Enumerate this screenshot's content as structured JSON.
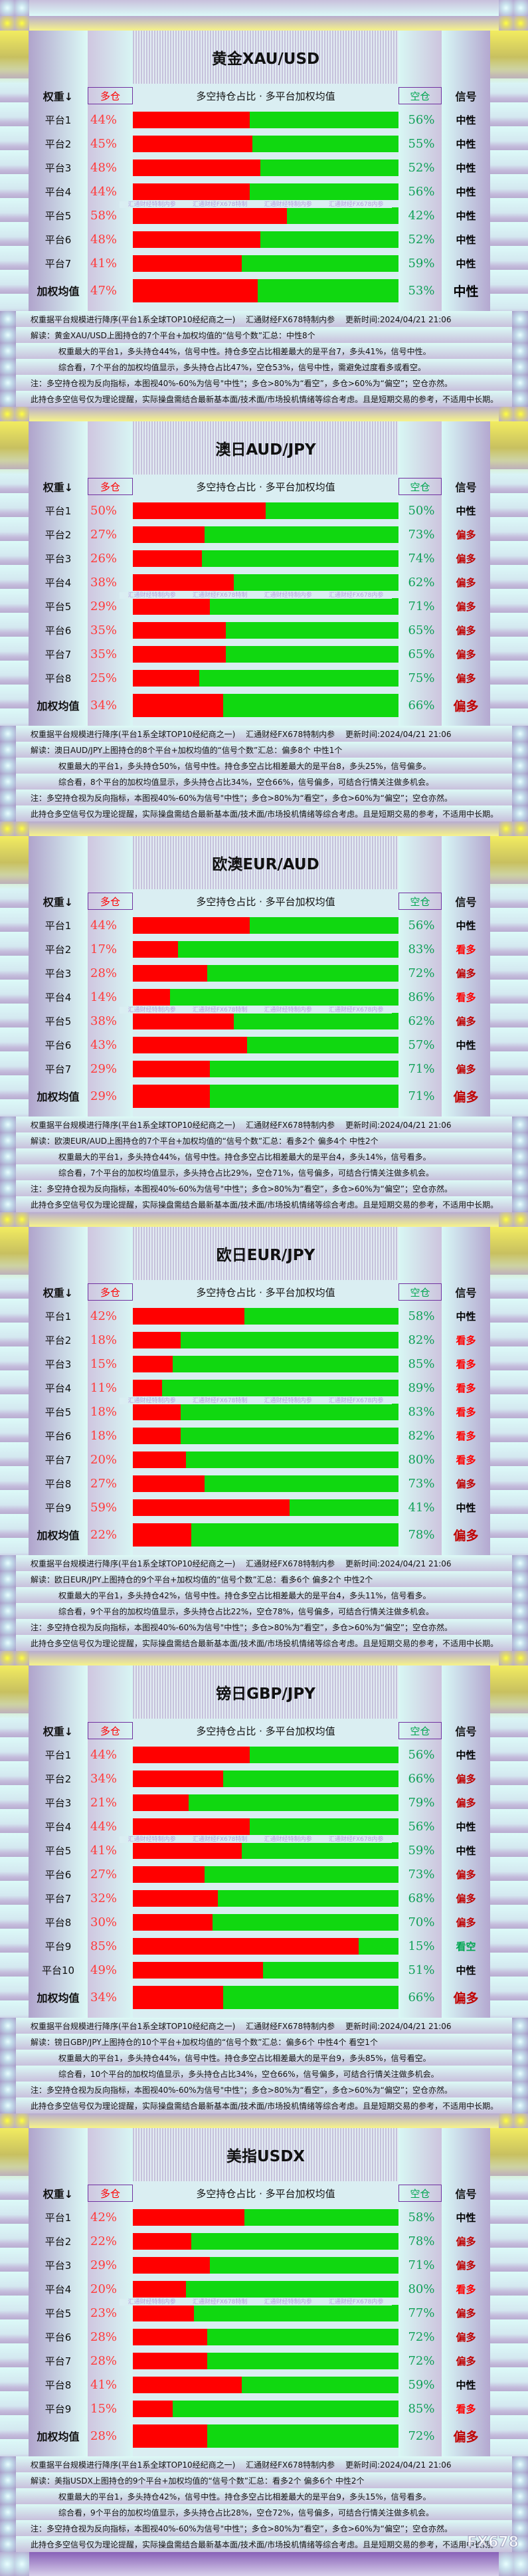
{
  "common": {
    "weight_header": "权重↓",
    "long_header": "多仓",
    "center_header": "多空持仓占比 · 多平台加权均值",
    "short_header": "空仓",
    "signal_header": "信号",
    "weighted_label": "加权均值",
    "footer_line1": "权重据平台规模进行降序(平台1系全球TOP10经纪商之一)　 汇通财经FX678特制内参　 更新时间:2024/04/21 21:06",
    "footer_note": "注：多空持仓视为反向指标，本图视40%-60%为信号\"中性\"；多仓>80%为“看空”，多仓>60%为“偏空”；空仓亦然。",
    "footer_disclaimer": "此持仓多空信号仅为理论提醒，实际操盘需结合最新基本面/技术面/市场投机情绪等综合考虑。且是短期交易的参考，不适用中长期。",
    "watermarks": [
      "汇通财经特制内参",
      "汇通财经FX678特制",
      "汇通财经特制内参",
      "汇通财经FX678内参"
    ],
    "logo": "FX678"
  },
  "signal_colors": {
    "中性": "#000000",
    "偏多": "#c00000",
    "看多": "#ff0000",
    "看空": "#00a651"
  },
  "bar_colors": {
    "long": "#ff0000",
    "short": "#10d810"
  },
  "panels": [
    {
      "title": "黄金XAU/USD",
      "rows": [
        {
          "label": "平台1",
          "long": "44%",
          "short": "56%",
          "signal": "中性"
        },
        {
          "label": "平台2",
          "long": "45%",
          "short": "55%",
          "signal": "中性"
        },
        {
          "label": "平台3",
          "long": "48%",
          "short": "52%",
          "signal": "中性"
        },
        {
          "label": "平台4",
          "long": "44%",
          "short": "56%",
          "signal": "中性"
        },
        {
          "label": "平台5",
          "long": "58%",
          "short": "42%",
          "signal": "中性"
        },
        {
          "label": "平台6",
          "long": "48%",
          "short": "52%",
          "signal": "中性"
        },
        {
          "label": "平台7",
          "long": "41%",
          "short": "59%",
          "signal": "中性"
        }
      ],
      "weighted": {
        "long": "47%",
        "short": "53%",
        "signal": "中性"
      },
      "summary": "解读：黄金XAU/USD上图持仓的7个平台+加权均值的“信号个数”汇总：中性8个",
      "detail": "权重最大的平台1，多头持仓44%，信号中性。持仓多空占比相差最大的是平台7，多头41%，信号中性。",
      "conclusion": "综合看，7个平台的加权均值显示，多头持仓占比47%，空仓53%，信号中性，需避免过度看多或看空。"
    },
    {
      "title": "澳日AUD/JPY",
      "rows": [
        {
          "label": "平台1",
          "long": "50%",
          "short": "50%",
          "signal": "中性"
        },
        {
          "label": "平台2",
          "long": "27%",
          "short": "73%",
          "signal": "偏多"
        },
        {
          "label": "平台3",
          "long": "26%",
          "short": "74%",
          "signal": "偏多"
        },
        {
          "label": "平台4",
          "long": "38%",
          "short": "62%",
          "signal": "偏多"
        },
        {
          "label": "平台5",
          "long": "29%",
          "short": "71%",
          "signal": "偏多"
        },
        {
          "label": "平台6",
          "long": "35%",
          "short": "65%",
          "signal": "偏多"
        },
        {
          "label": "平台7",
          "long": "35%",
          "short": "65%",
          "signal": "偏多"
        },
        {
          "label": "平台8",
          "long": "25%",
          "short": "75%",
          "signal": "偏多"
        }
      ],
      "weighted": {
        "long": "34%",
        "short": "66%",
        "signal": "偏多"
      },
      "summary": "解读：澳日AUD/JPY上图持仓的8个平台+加权均值的“信号个数”汇总：偏多8个 中性1个",
      "detail": "权重最大的平台1，多头持仓50%，信号中性。持仓多空占比相差最大的是平台8，多头25%，信号偏多。",
      "conclusion": "综合看，8个平台的加权均值显示，多头持仓占比34%，空仓66%，信号偏多，可结合行情关注做多机会。"
    },
    {
      "title": "欧澳EUR/AUD",
      "rows": [
        {
          "label": "平台1",
          "long": "44%",
          "short": "56%",
          "signal": "中性"
        },
        {
          "label": "平台2",
          "long": "17%",
          "short": "83%",
          "signal": "看多"
        },
        {
          "label": "平台3",
          "long": "28%",
          "short": "72%",
          "signal": "偏多"
        },
        {
          "label": "平台4",
          "long": "14%",
          "short": "86%",
          "signal": "看多"
        },
        {
          "label": "平台5",
          "long": "38%",
          "short": "62%",
          "signal": "偏多"
        },
        {
          "label": "平台6",
          "long": "43%",
          "short": "57%",
          "signal": "中性"
        },
        {
          "label": "平台7",
          "long": "29%",
          "short": "71%",
          "signal": "偏多"
        }
      ],
      "weighted": {
        "long": "29%",
        "short": "71%",
        "signal": "偏多"
      },
      "summary": "解读：欧澳EUR/AUD上图持仓的7个平台+加权均值的“信号个数”汇总：看多2个 偏多4个 中性2个",
      "detail": "权重最大的平台1，多头持仓44%，信号中性。持仓多空占比相差最大的是平台4，多头14%，信号看多。",
      "conclusion": "综合看，7个平台的加权均值显示，多头持仓占比29%，空仓71%，信号偏多，可结合行情关注做多机会。"
    },
    {
      "title": "欧日EUR/JPY",
      "rows": [
        {
          "label": "平台1",
          "long": "42%",
          "short": "58%",
          "signal": "中性"
        },
        {
          "label": "平台2",
          "long": "18%",
          "short": "82%",
          "signal": "看多"
        },
        {
          "label": "平台3",
          "long": "15%",
          "short": "85%",
          "signal": "看多"
        },
        {
          "label": "平台4",
          "long": "11%",
          "short": "89%",
          "signal": "看多"
        },
        {
          "label": "平台5",
          "long": "18%",
          "short": "83%",
          "signal": "看多"
        },
        {
          "label": "平台6",
          "long": "18%",
          "short": "82%",
          "signal": "看多"
        },
        {
          "label": "平台7",
          "long": "20%",
          "short": "80%",
          "signal": "看多"
        },
        {
          "label": "平台8",
          "long": "27%",
          "short": "73%",
          "signal": "偏多"
        },
        {
          "label": "平台9",
          "long": "59%",
          "short": "41%",
          "signal": "中性"
        }
      ],
      "weighted": {
        "long": "22%",
        "short": "78%",
        "signal": "偏多"
      },
      "summary": "解读：欧日EUR/JPY上图持仓的9个平台+加权均值的“信号个数”汇总：看多6个 偏多2个 中性2个",
      "detail": "权重最大的平台1，多头持仓42%，信号中性。持仓多空占比相差最大的是平台4，多头11%，信号看多。",
      "conclusion": "综合看，9个平台的加权均值显示，多头持仓占比22%，空仓78%，信号偏多，可结合行情关注做多机会。"
    },
    {
      "title": "镑日GBP/JPY",
      "rows": [
        {
          "label": "平台1",
          "long": "44%",
          "short": "56%",
          "signal": "中性"
        },
        {
          "label": "平台2",
          "long": "34%",
          "short": "66%",
          "signal": "偏多"
        },
        {
          "label": "平台3",
          "long": "21%",
          "short": "79%",
          "signal": "偏多"
        },
        {
          "label": "平台4",
          "long": "44%",
          "short": "56%",
          "signal": "中性"
        },
        {
          "label": "平台5",
          "long": "41%",
          "short": "59%",
          "signal": "中性"
        },
        {
          "label": "平台6",
          "long": "27%",
          "short": "73%",
          "signal": "偏多"
        },
        {
          "label": "平台7",
          "long": "32%",
          "short": "68%",
          "signal": "偏多"
        },
        {
          "label": "平台8",
          "long": "30%",
          "short": "70%",
          "signal": "偏多"
        },
        {
          "label": "平台9",
          "long": "85%",
          "short": "15%",
          "signal": "看空"
        },
        {
          "label": "平台10",
          "long": "49%",
          "short": "51%",
          "signal": "中性"
        }
      ],
      "weighted": {
        "long": "34%",
        "short": "66%",
        "signal": "偏多"
      },
      "summary": "解读：镑日GBP/JPY上图持仓的10个平台+加权均值的“信号个数”汇总：偏多6个 中性4个 看空1个",
      "detail": "权重最大的平台1，多头持仓44%，信号中性。持仓多空占比相差最大的是平台9，多头85%，信号看空。",
      "conclusion": "综合看，10个平台的加权均值显示，多头持仓占比34%，空仓66%，信号偏多，可结合行情关注做多机会。"
    },
    {
      "title": "美指USDX",
      "rows": [
        {
          "label": "平台1",
          "long": "42%",
          "short": "58%",
          "signal": "中性"
        },
        {
          "label": "平台2",
          "long": "22%",
          "short": "78%",
          "signal": "偏多"
        },
        {
          "label": "平台3",
          "long": "29%",
          "short": "71%",
          "signal": "偏多"
        },
        {
          "label": "平台4",
          "long": "20%",
          "short": "80%",
          "signal": "看多"
        },
        {
          "label": "平台5",
          "long": "23%",
          "short": "77%",
          "signal": "偏多"
        },
        {
          "label": "平台6",
          "long": "28%",
          "short": "72%",
          "signal": "偏多"
        },
        {
          "label": "平台7",
          "long": "28%",
          "short": "72%",
          "signal": "偏多"
        },
        {
          "label": "平台8",
          "long": "41%",
          "short": "59%",
          "signal": "中性"
        },
        {
          "label": "平台9",
          "long": "15%",
          "short": "85%",
          "signal": "看多"
        }
      ],
      "weighted": {
        "long": "28%",
        "short": "72%",
        "signal": "偏多"
      },
      "summary": "解读：美指USDX上图持仓的9个平台+加权均值的“信号个数”汇总：看多2个 偏多6个 中性2个",
      "detail": "权重最大的平台1，多头持仓42%，信号中性。持仓多空占比相差最大的是平台9，多头15%，信号看多。",
      "conclusion": "综合看，9个平台的加权均值显示，多头持仓占比28%，空仓72%，信号偏多，可结合行情关注做多机会。"
    }
  ]
}
